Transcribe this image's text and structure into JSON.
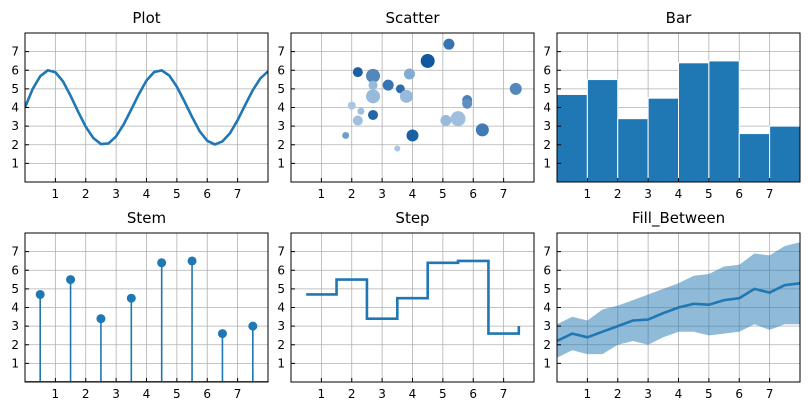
{
  "figure": {
    "accent": "#1f77b4",
    "xlim": [
      0,
      8
    ],
    "ylim": [
      0,
      8
    ],
    "xticks": [
      1,
      2,
      3,
      4,
      5,
      6,
      7
    ],
    "yticks": [
      1,
      2,
      3,
      4,
      5,
      6,
      7
    ],
    "grid": true
  },
  "chart_data": [
    {
      "type": "line",
      "title": "Plot",
      "x": [
        0,
        0.25,
        0.5,
        0.75,
        1,
        1.25,
        1.5,
        1.75,
        2,
        2.25,
        2.5,
        2.75,
        3,
        3.25,
        3.5,
        3.75,
        4,
        4.25,
        4.5,
        4.75,
        5,
        5.25,
        5.5,
        5.75,
        6,
        6.25,
        6.5,
        6.75,
        7,
        7.25,
        7.5,
        7.75,
        8
      ],
      "y": [
        4.0,
        4.99,
        5.68,
        6.0,
        5.89,
        5.4,
        4.63,
        3.77,
        2.96,
        2.36,
        2.04,
        2.07,
        2.45,
        3.1,
        3.9,
        4.72,
        5.45,
        5.9,
        5.99,
        5.72,
        5.11,
        4.32,
        3.49,
        2.72,
        2.21,
        2.02,
        2.18,
        2.62,
        3.32,
        4.14,
        4.93,
        5.57,
        5.94
      ]
    },
    {
      "type": "scatter",
      "title": "Scatter",
      "points": [
        {
          "x": 2.0,
          "y": 4.1,
          "size": 4,
          "shade": 0.15
        },
        {
          "x": 1.8,
          "y": 2.5,
          "size": 3.5,
          "shade": 0.45
        },
        {
          "x": 2.2,
          "y": 5.9,
          "size": 5,
          "shade": 0.9
        },
        {
          "x": 2.7,
          "y": 5.7,
          "size": 7,
          "shade": 0.6
        },
        {
          "x": 2.7,
          "y": 5.2,
          "size": 4.5,
          "shade": 0.25
        },
        {
          "x": 2.7,
          "y": 4.6,
          "size": 7,
          "shade": 0.25
        },
        {
          "x": 2.3,
          "y": 3.8,
          "size": 3.5,
          "shade": 0.2
        },
        {
          "x": 2.2,
          "y": 3.3,
          "size": 5,
          "shade": 0.2
        },
        {
          "x": 2.7,
          "y": 3.6,
          "size": 5,
          "shade": 0.85
        },
        {
          "x": 3.2,
          "y": 5.2,
          "size": 5.5,
          "shade": 0.75
        },
        {
          "x": 3.6,
          "y": 5.0,
          "size": 4.5,
          "shade": 0.8
        },
        {
          "x": 3.8,
          "y": 4.6,
          "size": 6.5,
          "shade": 0.25
        },
        {
          "x": 3.9,
          "y": 5.8,
          "size": 5.5,
          "shade": 0.35
        },
        {
          "x": 4.0,
          "y": 2.5,
          "size": 6,
          "shade": 0.9
        },
        {
          "x": 3.5,
          "y": 1.8,
          "size": 3,
          "shade": 0.15
        },
        {
          "x": 4.5,
          "y": 6.5,
          "size": 7,
          "shade": 0.95
        },
        {
          "x": 5.2,
          "y": 7.4,
          "size": 5.5,
          "shade": 0.75
        },
        {
          "x": 5.1,
          "y": 3.3,
          "size": 5.5,
          "shade": 0.25
        },
        {
          "x": 5.5,
          "y": 3.4,
          "size": 7.5,
          "shade": 0.2
        },
        {
          "x": 5.8,
          "y": 4.4,
          "size": 5,
          "shade": 0.65
        },
        {
          "x": 5.8,
          "y": 4.2,
          "size": 5,
          "shade": 0.55
        },
        {
          "x": 6.3,
          "y": 2.8,
          "size": 6.5,
          "shade": 0.7
        },
        {
          "x": 7.4,
          "y": 5.0,
          "size": 6,
          "shade": 0.6
        }
      ]
    },
    {
      "type": "bar",
      "title": "Bar",
      "x": [
        0.5,
        1.5,
        2.5,
        3.5,
        4.5,
        5.5,
        6.5,
        7.5
      ],
      "values": [
        4.7,
        5.5,
        3.4,
        4.5,
        6.4,
        6.5,
        2.6,
        3.0
      ]
    },
    {
      "type": "stem",
      "title": "Stem",
      "x": [
        0.5,
        1.5,
        2.5,
        3.5,
        4.5,
        5.5,
        6.5,
        7.5
      ],
      "values": [
        4.7,
        5.5,
        3.4,
        4.5,
        6.4,
        6.5,
        2.6,
        3.0
      ]
    },
    {
      "type": "step",
      "title": "Step",
      "x": [
        0.5,
        1.5,
        2.5,
        3.5,
        4.5,
        5.5,
        6.5,
        7.5
      ],
      "values": [
        4.7,
        5.5,
        3.4,
        4.5,
        6.4,
        6.5,
        2.6,
        3.0
      ]
    },
    {
      "type": "area",
      "title": "Fill_Between",
      "x": [
        0,
        0.5,
        1,
        1.5,
        2,
        2.5,
        3,
        3.5,
        4,
        4.5,
        5,
        5.5,
        6,
        6.5,
        7,
        7.5,
        8
      ],
      "y": [
        2.2,
        2.6,
        2.4,
        2.7,
        3.0,
        3.3,
        3.35,
        3.7,
        4.0,
        4.2,
        4.15,
        4.4,
        4.5,
        5.0,
        4.8,
        5.2,
        5.3
      ],
      "upper": [
        3.1,
        3.5,
        3.3,
        3.9,
        4.1,
        4.4,
        4.7,
        5.0,
        5.3,
        5.7,
        5.8,
        6.2,
        6.3,
        6.9,
        6.8,
        7.3,
        7.5
      ],
      "lower": [
        1.3,
        1.7,
        1.5,
        1.5,
        2.0,
        2.2,
        2.0,
        2.4,
        2.7,
        2.7,
        2.5,
        2.6,
        2.7,
        3.1,
        2.8,
        3.1,
        3.1
      ]
    }
  ]
}
